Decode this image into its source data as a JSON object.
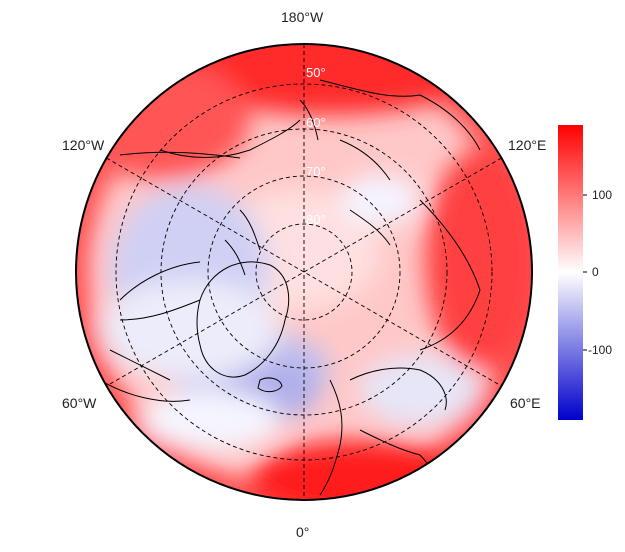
{
  "map": {
    "projection": "north-polar-stereographic",
    "longitude_labels": {
      "top": "180°W",
      "bottom": "0°",
      "upper_left": "120°W",
      "upper_right": "120°E",
      "lower_left": "60°W",
      "lower_right": "60°E"
    },
    "latitude_labels": [
      "50°",
      "60°",
      "70°",
      "80°"
    ],
    "graticule_style": "dashed"
  },
  "colorbar": {
    "min": -190,
    "max": 190,
    "ticks": [
      "100",
      "0",
      "-100"
    ],
    "colors": {
      "low": "#0000cc",
      "mid": "#ffffff",
      "high": "#ff0000"
    }
  }
}
